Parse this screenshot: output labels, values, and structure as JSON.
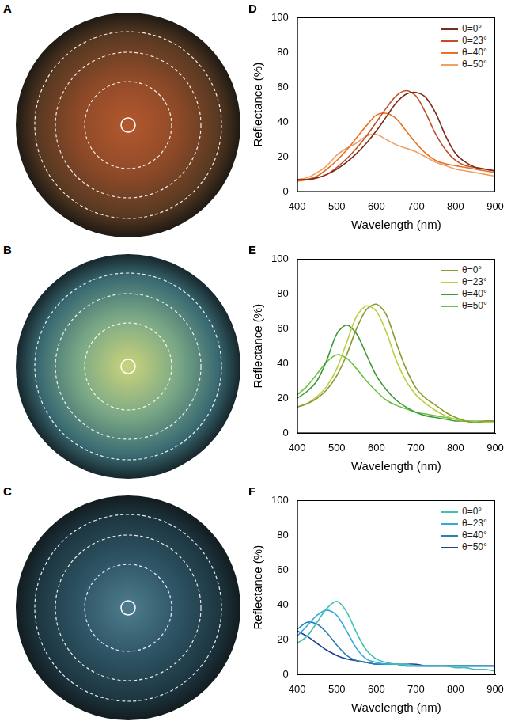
{
  "images": [
    {
      "panel": "A"
    },
    {
      "panel": "B"
    },
    {
      "panel": "C"
    }
  ],
  "chart_data": [
    {
      "panel": "D",
      "type": "line",
      "x_label": "Wavelength (nm)",
      "y_label": "Reflectance (%)",
      "x": [
        400,
        425,
        450,
        475,
        500,
        525,
        550,
        575,
        600,
        625,
        650,
        675,
        700,
        725,
        750,
        775,
        800,
        825,
        850,
        875,
        900
      ],
      "series": [
        {
          "name": "θ=0°",
          "color": "#7a2e1a",
          "values": [
            7,
            7,
            8,
            10,
            13,
            17,
            22,
            28,
            35,
            43,
            51,
            56,
            57,
            54,
            45,
            32,
            22,
            17,
            14,
            13,
            12
          ]
        },
        {
          "name": "θ=23°",
          "color": "#c0502a",
          "values": [
            7,
            7,
            8,
            10,
            14,
            19,
            25,
            32,
            40,
            48,
            55,
            58,
            55,
            45,
            33,
            24,
            18,
            15,
            14,
            13,
            12
          ]
        },
        {
          "name": "θ=40°",
          "color": "#e8702a",
          "values": [
            6,
            7,
            9,
            13,
            18,
            24,
            31,
            38,
            44,
            45,
            42,
            35,
            28,
            22,
            18,
            16,
            15,
            14,
            13,
            12,
            11
          ]
        },
        {
          "name": "θ=50°",
          "color": "#f0a060",
          "values": [
            7,
            8,
            11,
            15,
            21,
            25,
            28,
            32,
            33,
            30,
            27,
            25,
            23,
            20,
            17,
            15,
            13,
            12,
            11,
            10,
            9
          ]
        }
      ],
      "xlim": [
        400,
        900
      ],
      "xticks": [
        400,
        500,
        600,
        700,
        800,
        900
      ],
      "ylim": [
        0,
        100
      ],
      "yticks": [
        0,
        20,
        40,
        60,
        80,
        100
      ],
      "grid": false,
      "legend": "top-right"
    },
    {
      "panel": "E",
      "type": "line",
      "x_label": "Wavelength (nm)",
      "y_label": "Reflectance (%)",
      "x": [
        400,
        425,
        450,
        475,
        500,
        525,
        550,
        575,
        600,
        625,
        650,
        675,
        700,
        725,
        750,
        775,
        800,
        825,
        850,
        875,
        900
      ],
      "series": [
        {
          "name": "θ=0°",
          "color": "#8a9a30",
          "values": [
            15,
            17,
            20,
            25,
            33,
            45,
            60,
            71,
            74,
            68,
            52,
            37,
            26,
            20,
            16,
            12,
            9,
            7,
            6,
            7,
            7
          ]
        },
        {
          "name": "θ=23°",
          "color": "#b8d040",
          "values": [
            15,
            17,
            21,
            27,
            37,
            52,
            67,
            73,
            70,
            58,
            42,
            30,
            22,
            17,
            13,
            10,
            8,
            7,
            6,
            6,
            6
          ]
        },
        {
          "name": "θ=40°",
          "color": "#3a9a3a",
          "values": [
            20,
            24,
            30,
            42,
            57,
            62,
            57,
            45,
            33,
            25,
            19,
            15,
            12,
            10,
            9,
            8,
            7,
            7,
            6,
            6,
            6
          ]
        },
        {
          "name": "θ=50°",
          "color": "#70c040",
          "values": [
            22,
            27,
            34,
            41,
            45,
            43,
            37,
            30,
            24,
            19,
            16,
            14,
            12,
            11,
            10,
            9,
            8,
            7,
            7,
            7,
            7
          ]
        }
      ],
      "xlim": [
        400,
        900
      ],
      "xticks": [
        400,
        500,
        600,
        700,
        800,
        900
      ],
      "ylim": [
        0,
        100
      ],
      "yticks": [
        0,
        20,
        40,
        60,
        80,
        100
      ],
      "grid": false,
      "legend": "top-right"
    },
    {
      "panel": "F",
      "type": "line",
      "x_label": "Wavelength (nm)",
      "y_label": "Reflectance (%)",
      "x": [
        400,
        425,
        450,
        475,
        500,
        525,
        550,
        575,
        600,
        625,
        650,
        675,
        700,
        725,
        750,
        775,
        800,
        825,
        850,
        875,
        900
      ],
      "series": [
        {
          "name": "θ=0°",
          "color": "#40c0b0",
          "values": [
            18,
            22,
            30,
            38,
            42,
            36,
            24,
            14,
            9,
            7,
            6,
            6,
            5,
            5,
            5,
            5,
            4,
            4,
            3,
            3,
            2
          ]
        },
        {
          "name": "θ=23°",
          "color": "#30a8e0",
          "values": [
            22,
            28,
            34,
            37,
            34,
            25,
            15,
            9,
            7,
            6,
            6,
            5,
            5,
            5,
            5,
            5,
            5,
            5,
            5,
            5,
            5
          ]
        },
        {
          "name": "θ=40°",
          "color": "#2a80b0",
          "values": [
            26,
            30,
            29,
            24,
            17,
            11,
            8,
            7,
            6,
            6,
            6,
            5,
            5,
            5,
            5,
            5,
            5,
            5,
            5,
            5,
            5
          ]
        },
        {
          "name": "θ=50°",
          "color": "#2040a0",
          "values": [
            25,
            22,
            18,
            14,
            11,
            9,
            8,
            7,
            6,
            6,
            6,
            6,
            6,
            5,
            5,
            5,
            5,
            5,
            5,
            5,
            5
          ]
        }
      ],
      "xlim": [
        400,
        900
      ],
      "xticks": [
        400,
        500,
        600,
        700,
        800,
        900
      ],
      "ylim": [
        0,
        100
      ],
      "yticks": [
        0,
        20,
        40,
        60,
        80,
        100
      ],
      "grid": false,
      "legend": "top-right"
    }
  ]
}
